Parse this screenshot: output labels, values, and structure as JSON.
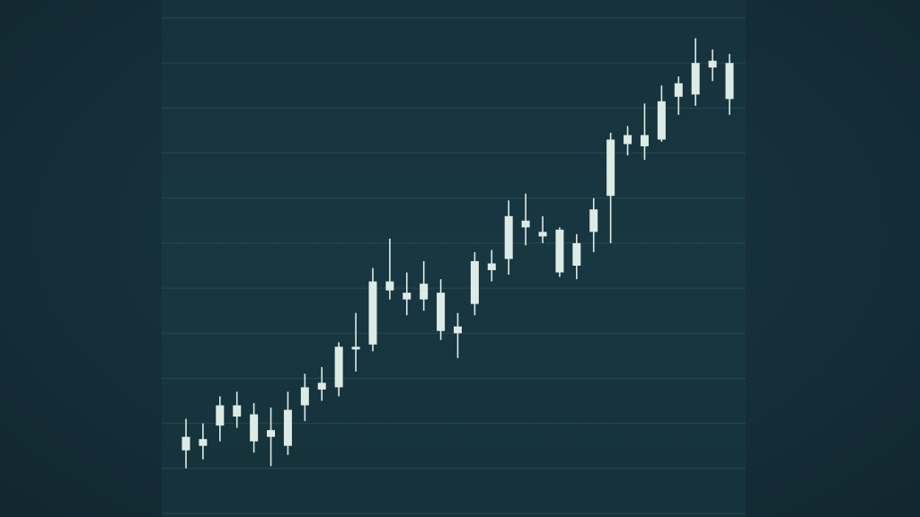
{
  "colors": {
    "background": "#142a32",
    "plot_background": "#183540",
    "grid": "#2a4f5a",
    "candle": "#dcebe6"
  },
  "chart_data": {
    "type": "candlestick",
    "title": "",
    "xlabel": "",
    "ylabel": "",
    "grid": true,
    "legend": "none",
    "ylim": [
      0,
      11
    ],
    "candles": [
      {
        "o": 1.7,
        "c": 1.4,
        "h": 2.1,
        "l": 1.0
      },
      {
        "o": 1.5,
        "c": 1.65,
        "h": 2.0,
        "l": 1.2
      },
      {
        "o": 2.4,
        "c": 1.95,
        "h": 2.6,
        "l": 1.6
      },
      {
        "o": 2.15,
        "c": 2.4,
        "h": 2.7,
        "l": 1.9
      },
      {
        "o": 2.2,
        "c": 1.6,
        "h": 2.45,
        "l": 1.35
      },
      {
        "o": 1.7,
        "c": 1.85,
        "h": 2.35,
        "l": 1.05
      },
      {
        "o": 2.3,
        "c": 1.5,
        "h": 2.7,
        "l": 1.3
      },
      {
        "o": 2.8,
        "c": 2.4,
        "h": 3.1,
        "l": 2.05
      },
      {
        "o": 2.75,
        "c": 2.9,
        "h": 3.25,
        "l": 2.5
      },
      {
        "o": 3.7,
        "c": 2.8,
        "h": 3.8,
        "l": 2.6
      },
      {
        "o": 3.7,
        "c": 3.65,
        "h": 4.45,
        "l": 3.15
      },
      {
        "o": 5.15,
        "c": 3.75,
        "h": 5.45,
        "l": 3.6
      },
      {
        "o": 5.15,
        "c": 4.95,
        "h": 6.1,
        "l": 4.75
      },
      {
        "o": 4.9,
        "c": 4.75,
        "h": 5.35,
        "l": 4.4
      },
      {
        "o": 5.1,
        "c": 4.75,
        "h": 5.6,
        "l": 4.5
      },
      {
        "o": 4.9,
        "c": 4.05,
        "h": 5.2,
        "l": 3.85
      },
      {
        "o": 4.15,
        "c": 4.0,
        "h": 4.45,
        "l": 3.45
      },
      {
        "o": 5.6,
        "c": 4.65,
        "h": 5.8,
        "l": 4.4
      },
      {
        "o": 5.55,
        "c": 5.4,
        "h": 5.85,
        "l": 5.15
      },
      {
        "o": 6.6,
        "c": 5.65,
        "h": 6.95,
        "l": 5.3
      },
      {
        "o": 6.5,
        "c": 6.35,
        "h": 7.1,
        "l": 5.95
      },
      {
        "o": 6.25,
        "c": 6.15,
        "h": 6.6,
        "l": 6.0
      },
      {
        "o": 6.3,
        "c": 5.35,
        "h": 6.35,
        "l": 5.25
      },
      {
        "o": 6.0,
        "c": 5.5,
        "h": 6.2,
        "l": 5.2
      },
      {
        "o": 6.75,
        "c": 6.25,
        "h": 7.0,
        "l": 5.8
      },
      {
        "o": 8.3,
        "c": 7.05,
        "h": 8.45,
        "l": 6.0
      },
      {
        "o": 8.4,
        "c": 8.2,
        "h": 8.6,
        "l": 7.95
      },
      {
        "o": 8.4,
        "c": 8.15,
        "h": 9.1,
        "l": 7.85
      },
      {
        "o": 9.15,
        "c": 8.3,
        "h": 9.5,
        "l": 8.25
      },
      {
        "o": 9.55,
        "c": 9.25,
        "h": 9.7,
        "l": 8.85
      },
      {
        "o": 10.0,
        "c": 9.3,
        "h": 10.55,
        "l": 9.05
      },
      {
        "o": 10.05,
        "c": 9.9,
        "h": 10.3,
        "l": 9.6
      },
      {
        "o": 10.0,
        "c": 9.2,
        "h": 10.2,
        "l": 8.85
      }
    ]
  }
}
